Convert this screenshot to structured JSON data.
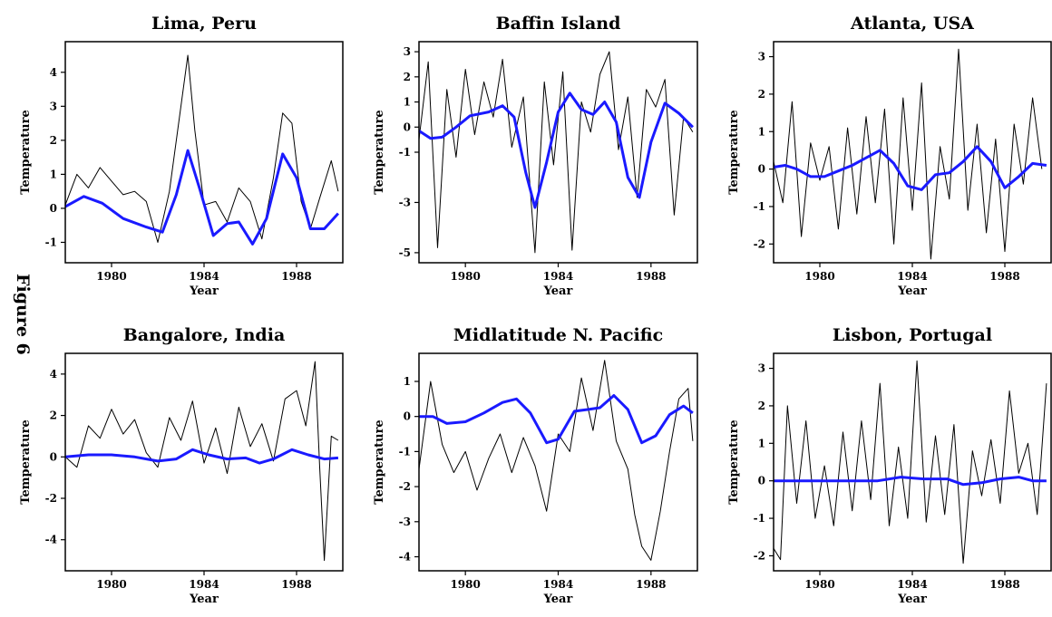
{
  "figure_label": "Figure 6",
  "colors": {
    "smooth_line": "#1a1aff",
    "raw_line": "#000000",
    "frame": "#000000"
  },
  "chart_data": [
    {
      "type": "line",
      "title": "Lima, Peru",
      "xlabel": "Year",
      "ylabel": "Temperature",
      "xlim": [
        1978.0,
        1990.0
      ],
      "ylim": [
        -1.6,
        4.9
      ],
      "xticks": [
        1980,
        1984,
        1988
      ],
      "yticks": [
        -1,
        0,
        1,
        2,
        3,
        4
      ],
      "series": [
        {
          "style": "raw",
          "x": [
            1978.0,
            1978.5,
            1979.0,
            1979.5,
            1980.0,
            1980.5,
            1981.0,
            1981.5,
            1982.0,
            1982.5,
            1983.0,
            1983.3,
            1983.6,
            1984.0,
            1984.5,
            1985.0,
            1985.5,
            1986.0,
            1986.5,
            1987.0,
            1987.4,
            1987.8,
            1988.2,
            1988.6,
            1989.0,
            1989.5,
            1989.8
          ],
          "y": [
            0.1,
            1.0,
            0.6,
            1.2,
            0.8,
            0.4,
            0.5,
            0.2,
            -1.0,
            0.5,
            3.0,
            4.5,
            2.3,
            0.1,
            0.2,
            -0.4,
            0.6,
            0.2,
            -0.9,
            0.9,
            2.8,
            2.5,
            0.2,
            -0.6,
            0.3,
            1.4,
            0.5
          ]
        },
        {
          "style": "smooth",
          "x": [
            1978.0,
            1978.8,
            1979.6,
            1980.5,
            1981.5,
            1982.2,
            1982.8,
            1983.3,
            1983.8,
            1984.4,
            1985.0,
            1985.5,
            1986.1,
            1986.7,
            1987.4,
            1988.0,
            1988.6,
            1989.2,
            1989.8
          ],
          "y": [
            0.05,
            0.35,
            0.15,
            -0.3,
            -0.55,
            -0.7,
            0.4,
            1.7,
            0.6,
            -0.8,
            -0.45,
            -0.4,
            -1.05,
            -0.3,
            1.6,
            0.9,
            -0.6,
            -0.6,
            -0.15
          ]
        }
      ]
    },
    {
      "type": "line",
      "title": "Baffin Island",
      "xlabel": "Year",
      "ylabel": "Temperature",
      "xlim": [
        1978.0,
        1990.0
      ],
      "ylim": [
        -5.4,
        3.4
      ],
      "xticks": [
        1980,
        1984,
        1988
      ],
      "yticks": [
        -5,
        -3,
        -1,
        0,
        1,
        2,
        3
      ],
      "series": [
        {
          "style": "raw",
          "x": [
            1978.0,
            1978.4,
            1978.8,
            1979.2,
            1979.6,
            1980.0,
            1980.4,
            1980.8,
            1981.2,
            1981.6,
            1982.0,
            1982.5,
            1983.0,
            1983.4,
            1983.8,
            1984.2,
            1984.6,
            1985.0,
            1985.4,
            1985.8,
            1986.2,
            1986.6,
            1987.0,
            1987.4,
            1987.8,
            1988.2,
            1988.6,
            1989.0,
            1989.4,
            1989.8
          ],
          "y": [
            -0.5,
            2.6,
            -4.8,
            1.5,
            -1.2,
            2.3,
            -0.3,
            1.8,
            0.4,
            2.7,
            -0.8,
            1.2,
            -5.0,
            1.8,
            -1.5,
            2.2,
            -4.9,
            1.0,
            -0.2,
            2.1,
            3.0,
            -0.9,
            1.2,
            -2.8,
            1.5,
            0.8,
            1.9,
            -3.5,
            0.4,
            -0.2
          ]
        },
        {
          "style": "smooth",
          "x": [
            1978.0,
            1978.5,
            1979.0,
            1979.6,
            1980.2,
            1981.0,
            1981.6,
            1982.1,
            1982.6,
            1983.0,
            1983.5,
            1984.0,
            1984.5,
            1985.0,
            1985.5,
            1986.0,
            1986.5,
            1987.0,
            1987.5,
            1988.0,
            1988.6,
            1989.2,
            1989.8
          ],
          "y": [
            -0.15,
            -0.45,
            -0.4,
            0.0,
            0.45,
            0.6,
            0.85,
            0.4,
            -1.8,
            -3.2,
            -1.4,
            0.6,
            1.35,
            0.7,
            0.5,
            1.0,
            0.2,
            -2.0,
            -2.8,
            -0.6,
            0.95,
            0.55,
            0.0
          ]
        }
      ]
    },
    {
      "type": "line",
      "title": "Atlanta, USA",
      "xlabel": "Year",
      "ylabel": "Temperature",
      "xlim": [
        1978.0,
        1990.0
      ],
      "ylim": [
        -2.5,
        3.4
      ],
      "xticks": [
        1980,
        1984,
        1988
      ],
      "yticks": [
        -2,
        -1,
        0,
        1,
        2,
        3
      ],
      "series": [
        {
          "style": "raw",
          "x": [
            1978.0,
            1978.4,
            1978.8,
            1979.2,
            1979.6,
            1980.0,
            1980.4,
            1980.8,
            1981.2,
            1981.6,
            1982.0,
            1982.4,
            1982.8,
            1983.2,
            1983.6,
            1984.0,
            1984.4,
            1984.8,
            1985.2,
            1985.6,
            1986.0,
            1986.4,
            1986.8,
            1987.2,
            1987.6,
            1988.0,
            1988.4,
            1988.8,
            1989.2,
            1989.6
          ],
          "y": [
            0.2,
            -0.9,
            1.8,
            -1.8,
            0.7,
            -0.3,
            0.6,
            -1.6,
            1.1,
            -1.2,
            1.4,
            -0.9,
            1.6,
            -2.0,
            1.9,
            -1.1,
            2.3,
            -2.4,
            0.6,
            -0.8,
            3.2,
            -1.1,
            1.2,
            -1.7,
            0.8,
            -2.2,
            1.2,
            -0.4,
            1.9,
            0.0
          ]
        },
        {
          "style": "smooth",
          "x": [
            1978.0,
            1978.5,
            1979.0,
            1979.6,
            1980.2,
            1980.8,
            1981.4,
            1982.0,
            1982.6,
            1983.2,
            1983.8,
            1984.4,
            1985.0,
            1985.6,
            1986.2,
            1986.8,
            1987.4,
            1988.0,
            1988.6,
            1989.2,
            1989.8
          ],
          "y": [
            0.05,
            0.1,
            0.0,
            -0.2,
            -0.2,
            -0.05,
            0.1,
            0.3,
            0.5,
            0.15,
            -0.45,
            -0.55,
            -0.15,
            -0.1,
            0.2,
            0.6,
            0.2,
            -0.5,
            -0.2,
            0.15,
            0.1
          ]
        }
      ]
    },
    {
      "type": "line",
      "title": "Bangalore, India",
      "xlabel": "Year",
      "ylabel": "Temperature",
      "xlim": [
        1978.0,
        1990.0
      ],
      "ylim": [
        -5.5,
        5.0
      ],
      "xticks": [
        1980,
        1984,
        1988
      ],
      "yticks": [
        -4,
        -2,
        0,
        2,
        4
      ],
      "series": [
        {
          "style": "raw",
          "x": [
            1978.0,
            1978.5,
            1979.0,
            1979.5,
            1980.0,
            1980.5,
            1981.0,
            1981.5,
            1982.0,
            1982.5,
            1983.0,
            1983.5,
            1984.0,
            1984.5,
            1985.0,
            1985.5,
            1986.0,
            1986.5,
            1987.0,
            1987.5,
            1988.0,
            1988.4,
            1988.8,
            1989.0,
            1989.2,
            1989.5,
            1989.8
          ],
          "y": [
            0.0,
            -0.5,
            1.5,
            0.9,
            2.3,
            1.1,
            1.8,
            0.2,
            -0.5,
            1.9,
            0.8,
            2.7,
            -0.3,
            1.4,
            -0.8,
            2.4,
            0.5,
            1.6,
            -0.2,
            2.8,
            3.2,
            1.5,
            4.6,
            -0.5,
            -5.0,
            1.0,
            0.8
          ]
        },
        {
          "style": "smooth",
          "x": [
            1978.0,
            1979.0,
            1980.0,
            1981.0,
            1982.0,
            1982.8,
            1983.5,
            1984.2,
            1985.0,
            1985.8,
            1986.4,
            1987.0,
            1987.8,
            1988.5,
            1989.2,
            1989.8
          ],
          "y": [
            0.0,
            0.1,
            0.1,
            0.0,
            -0.2,
            -0.1,
            0.35,
            0.1,
            -0.1,
            -0.05,
            -0.3,
            -0.1,
            0.35,
            0.1,
            -0.1,
            -0.05
          ]
        }
      ]
    },
    {
      "type": "line",
      "title": "Midlatitude N. Pacific",
      "xlabel": "Year",
      "ylabel": "Temperature",
      "xlim": [
        1978.0,
        1990.0
      ],
      "ylim": [
        -4.4,
        1.8
      ],
      "xticks": [
        1980,
        1984,
        1988
      ],
      "yticks": [
        -4,
        -3,
        -2,
        -1,
        0,
        1
      ],
      "series": [
        {
          "style": "raw",
          "x": [
            1978.0,
            1978.5,
            1979.0,
            1979.5,
            1980.0,
            1980.5,
            1981.0,
            1981.5,
            1982.0,
            1982.5,
            1983.0,
            1983.5,
            1984.0,
            1984.5,
            1985.0,
            1985.5,
            1986.0,
            1986.5,
            1987.0,
            1987.3,
            1987.6,
            1988.0,
            1988.4,
            1988.8,
            1989.2,
            1989.6,
            1989.8
          ],
          "y": [
            -1.5,
            1.0,
            -0.8,
            -1.6,
            -1.0,
            -2.1,
            -1.2,
            -0.5,
            -1.6,
            -0.6,
            -1.4,
            -2.7,
            -0.5,
            -1.0,
            1.1,
            -0.4,
            1.6,
            -0.7,
            -1.5,
            -2.8,
            -3.7,
            -4.1,
            -2.7,
            -1.0,
            0.5,
            0.8,
            -0.7
          ]
        },
        {
          "style": "smooth",
          "x": [
            1978.0,
            1978.6,
            1979.2,
            1980.0,
            1980.8,
            1981.6,
            1982.2,
            1982.8,
            1983.5,
            1984.0,
            1984.7,
            1985.3,
            1985.8,
            1986.4,
            1987.0,
            1987.6,
            1988.2,
            1988.8,
            1989.4,
            1989.8
          ],
          "y": [
            0.0,
            0.0,
            -0.2,
            -0.15,
            0.1,
            0.4,
            0.5,
            0.1,
            -0.75,
            -0.65,
            0.15,
            0.2,
            0.25,
            0.6,
            0.2,
            -0.75,
            -0.55,
            0.05,
            0.3,
            0.1
          ]
        }
      ]
    },
    {
      "type": "line",
      "title": "Lisbon, Portugal",
      "xlabel": "Year",
      "ylabel": "Temperature",
      "xlim": [
        1978.0,
        1990.0
      ],
      "ylim": [
        -2.4,
        3.4
      ],
      "xticks": [
        1980,
        1984,
        1988
      ],
      "yticks": [
        -2,
        -1,
        0,
        1,
        2,
        3
      ],
      "series": [
        {
          "style": "raw",
          "x": [
            1978.0,
            1978.3,
            1978.6,
            1979.0,
            1979.4,
            1979.8,
            1980.2,
            1980.6,
            1981.0,
            1981.4,
            1981.8,
            1982.2,
            1982.6,
            1983.0,
            1983.4,
            1983.8,
            1984.2,
            1984.6,
            1985.0,
            1985.4,
            1985.8,
            1986.2,
            1986.6,
            1987.0,
            1987.4,
            1987.8,
            1988.2,
            1988.6,
            1989.0,
            1989.4,
            1989.8
          ],
          "y": [
            -1.8,
            -2.1,
            2.0,
            -0.6,
            1.6,
            -1.0,
            0.4,
            -1.2,
            1.3,
            -0.8,
            1.6,
            -0.5,
            2.6,
            -1.2,
            0.9,
            -1.0,
            3.2,
            -1.1,
            1.2,
            -0.9,
            1.5,
            -2.2,
            0.8,
            -0.4,
            1.1,
            -0.6,
            2.4,
            0.2,
            1.0,
            -0.9,
            2.6
          ]
        },
        {
          "style": "smooth",
          "x": [
            1978.0,
            1979.5,
            1981.0,
            1982.5,
            1983.5,
            1984.5,
            1985.5,
            1986.2,
            1987.0,
            1987.8,
            1988.6,
            1989.2,
            1989.8
          ],
          "y": [
            0.0,
            0.0,
            0.0,
            0.0,
            0.1,
            0.05,
            0.05,
            -0.1,
            -0.05,
            0.05,
            0.1,
            0.0,
            0.0
          ]
        }
      ]
    }
  ]
}
